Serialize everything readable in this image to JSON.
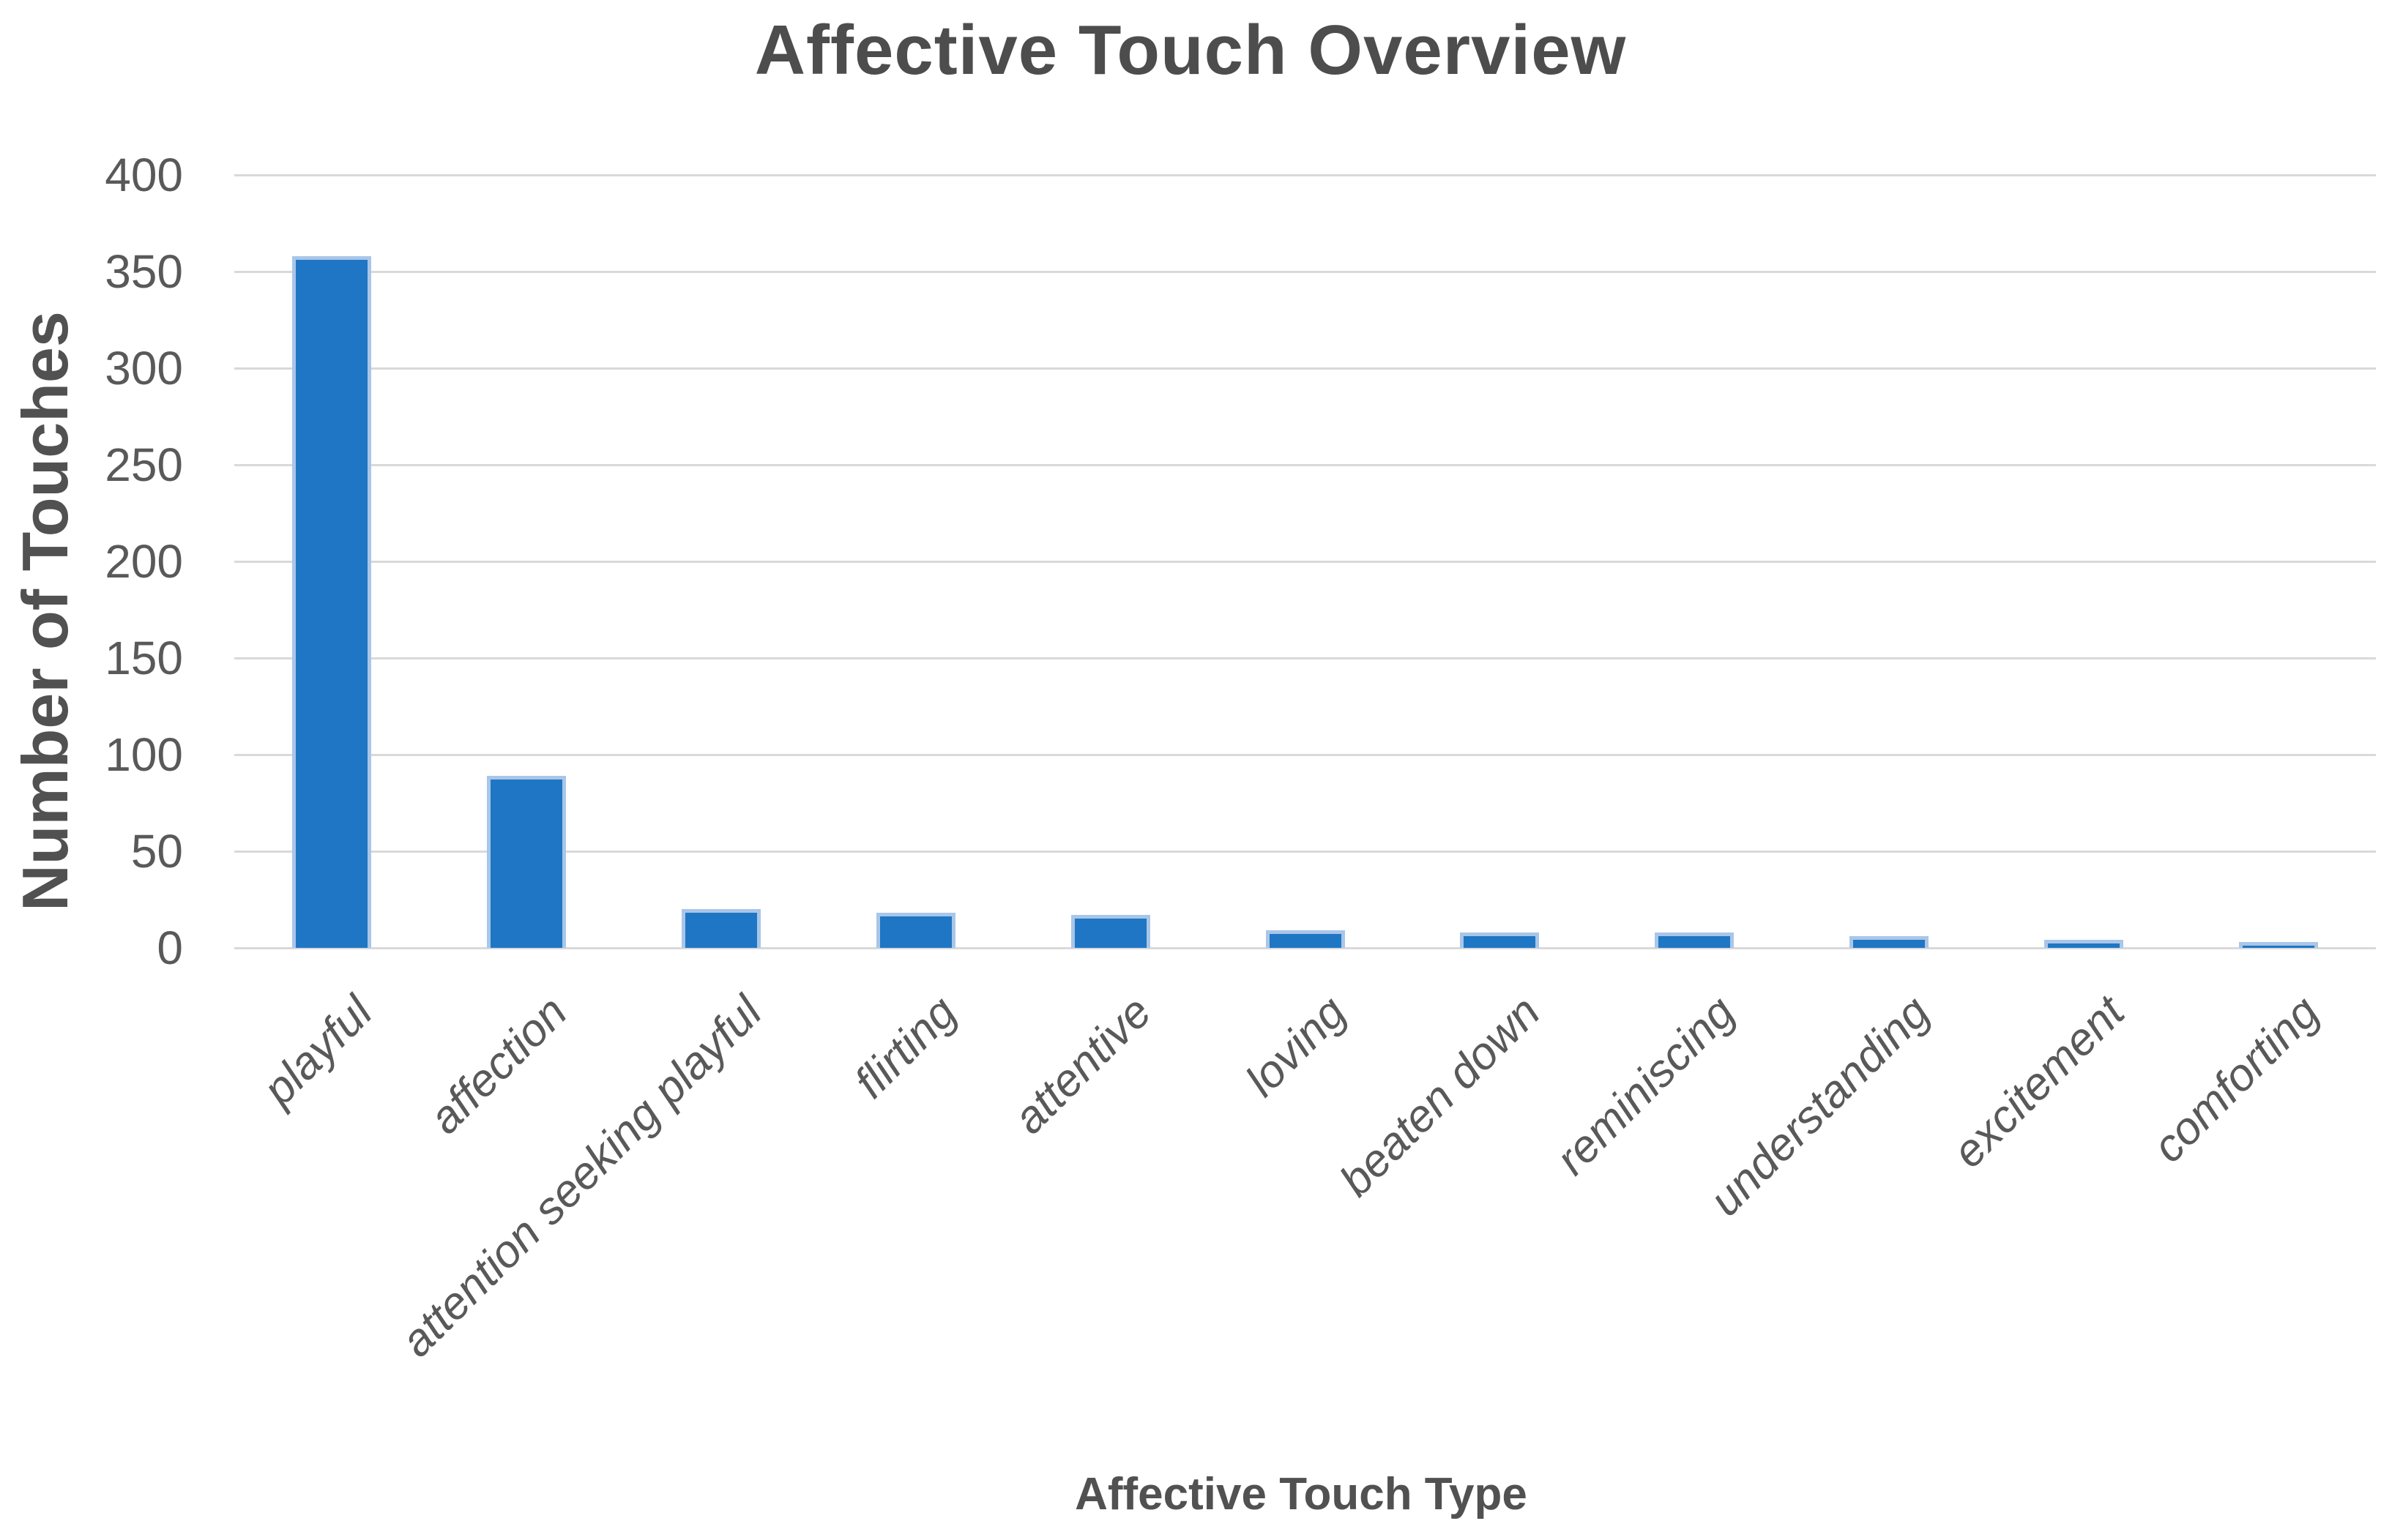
{
  "chart_data": {
    "type": "bar",
    "title": "Affective Touch Overview",
    "xlabel": "Affective Touch Type",
    "ylabel": "Number of Touches",
    "categories": [
      "playful",
      "affection",
      "attention seeking playful",
      "flirting",
      "attentive",
      "loving",
      "beaten down",
      "reminiscing",
      "understanding",
      "excitement",
      "comforting"
    ],
    "values": [
      358,
      89,
      20,
      18,
      17,
      9,
      8,
      8,
      6,
      4,
      3
    ],
    "ylim": [
      0,
      400
    ],
    "yticks": [
      0,
      50,
      100,
      150,
      200,
      250,
      300,
      350,
      400
    ],
    "ytick_step": 50,
    "grid": true,
    "legend": "none",
    "colors": {
      "bar_fill": "#1F76C4",
      "bar_edge": "#A9C6E8",
      "gridline": "#D9D9D9",
      "tick_text": "#595959",
      "title_text": "#4D4D4D",
      "axis_title_text": "#515151",
      "background": "#FFFFFF"
    }
  }
}
